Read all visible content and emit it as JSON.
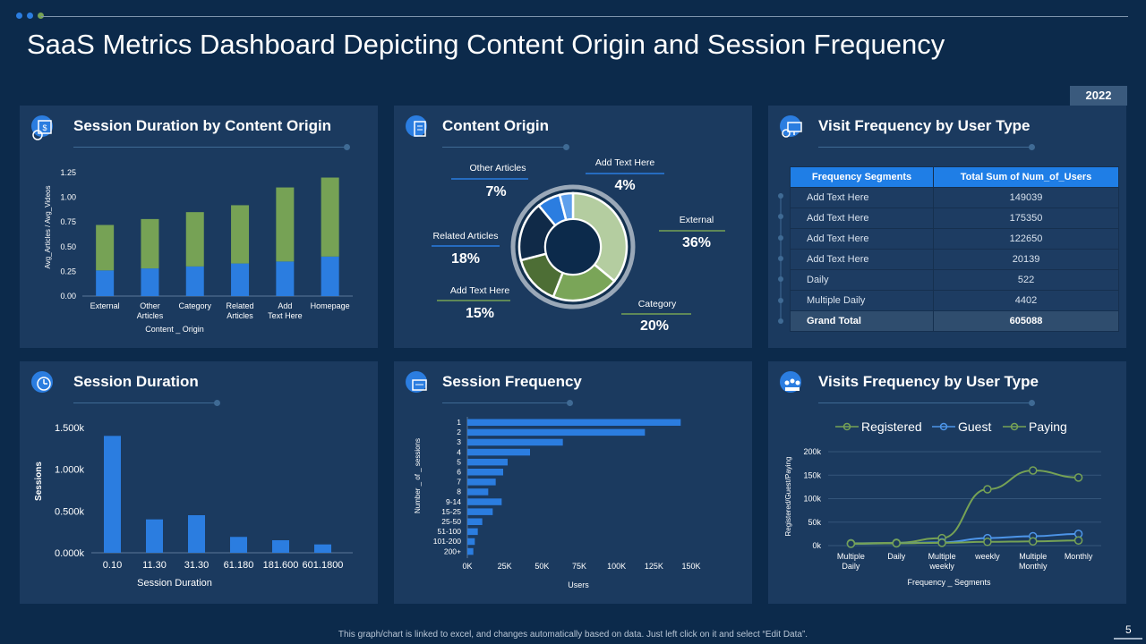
{
  "header": {
    "title": "SaaS Metrics Dashboard Depicting Content Origin and Session Frequency",
    "year_badge": "2022"
  },
  "colors": {
    "blue": "#2b7de0",
    "green": "#76a255",
    "light_blue": "#4d95e8",
    "background": "#0c2a4b",
    "panel": "#1b3a5f"
  },
  "panels": {
    "p1": {
      "title": "Session  Duration by Content Origin",
      "icon": "calendar-dollar-icon"
    },
    "p2": {
      "title": "Content Origin",
      "icon": "document-chart-icon"
    },
    "p3": {
      "title": "Visit Frequency by User Type",
      "icon": "monitor-settings-icon"
    },
    "p4": {
      "title": "Session Duration",
      "icon": "clock-settings-icon"
    },
    "p5": {
      "title": "Session  Frequency",
      "icon": "presentation-board-icon"
    },
    "p6": {
      "title": "Visits Frequency by User Type",
      "icon": "user-group-icon"
    }
  },
  "table": {
    "headers": [
      "Frequency Segments",
      "Total Sum of Num_of_Users"
    ],
    "rows": [
      {
        "segment": "Add Text Here",
        "value": "149039"
      },
      {
        "segment": "Add Text Here",
        "value": "175350"
      },
      {
        "segment": "Add Text Here",
        "value": "122650"
      },
      {
        "segment": "Add Text Here",
        "value": "20139"
      },
      {
        "segment": "Daily",
        "value": "522"
      },
      {
        "segment": "Multiple  Daily",
        "value": "4402"
      }
    ],
    "total": {
      "segment": "Grand Total",
      "value": "605088"
    }
  },
  "chart_data": [
    {
      "type": "bar",
      "stacked": true,
      "categories": [
        "External",
        "Other Articles",
        "Category",
        "Related Articles",
        "Add Text Here",
        "Homepage"
      ],
      "series": [
        {
          "values": [
            0.26,
            0.28,
            0.3,
            0.33,
            0.35,
            0.4
          ]
        },
        {
          "values": [
            0.46,
            0.5,
            0.55,
            0.59,
            0.75,
            0.8
          ]
        }
      ],
      "xlabel": "Content _ Origin",
      "ylabel": "Avg_Articles / Avg_Videos",
      "yticks": [
        "0.00",
        "0.25",
        "0.50",
        "0.75",
        "1.00",
        "1.25"
      ],
      "ylim": [
        0,
        1.25
      ]
    },
    {
      "type": "pie",
      "slices": [
        {
          "label": "External",
          "display": "36%",
          "value": 36
        },
        {
          "label": "Category",
          "display": "20%",
          "value": 20
        },
        {
          "label": "Add Text Here",
          "display": "15%",
          "value": 15
        },
        {
          "label": "Related Articles",
          "display": "18%",
          "value": 18
        },
        {
          "label": "Other Articles",
          "display": "7%",
          "value": 7
        },
        {
          "label": "Add Text Here",
          "display": "4%",
          "value": 4
        }
      ]
    },
    {
      "type": "bar",
      "categories": [
        "0.10",
        "11.30",
        "31.30",
        "61.180",
        "181.600",
        "601.1800"
      ],
      "values": [
        1400000,
        400000,
        450000,
        190000,
        150000,
        100000
      ],
      "xlabel": "Session Duration",
      "ylabel": "Sessions",
      "yticks": [
        "0.000k",
        "0.500k",
        "1.000k",
        "1.500k"
      ],
      "ylim": [
        0,
        1500000
      ]
    },
    {
      "type": "bar",
      "orientation": "horizontal",
      "categories": [
        "1",
        "2",
        "3",
        "4",
        "5",
        "6",
        "7",
        "8",
        "9-14",
        "15-25",
        "25-50",
        "51-100",
        "101-200",
        "200+"
      ],
      "values": [
        143000,
        119000,
        64000,
        42000,
        27000,
        24000,
        19000,
        14000,
        23000,
        17000,
        10000,
        7000,
        5000,
        4000
      ],
      "xlabel": "Users",
      "ylabel": "Number _ of _ sessions",
      "xticks": [
        "0K",
        "25K",
        "50K",
        "75K",
        "100K",
        "125K",
        "150K"
      ],
      "xlim": [
        0,
        150000
      ]
    },
    {
      "type": "line",
      "categories": [
        "Multiple Daily",
        "Daily",
        "Multiple weekly",
        "weekly",
        "Multiple Monthly",
        "Monthly"
      ],
      "series": [
        {
          "name": "Registered",
          "values": [
            5000,
            6000,
            16000,
            120000,
            160000,
            145000
          ]
        },
        {
          "name": "Guest",
          "values": [
            4000,
            5000,
            7000,
            16000,
            20000,
            25000
          ]
        },
        {
          "name": "Paying",
          "values": [
            4000,
            5000,
            6000,
            8000,
            9000,
            11000
          ]
        }
      ],
      "xlabel": "Frequency _ Segments",
      "ylabel": "Registered/Guest/Paying",
      "yticks": [
        "0k",
        "50k",
        "100k",
        "150k",
        "200k"
      ],
      "ylim": [
        0,
        200000
      ]
    }
  ],
  "footer": {
    "note": "This graph/chart is linked to excel, and changes automatically based on data. Just left click on it and select “Edit Data”.",
    "page": "5"
  }
}
